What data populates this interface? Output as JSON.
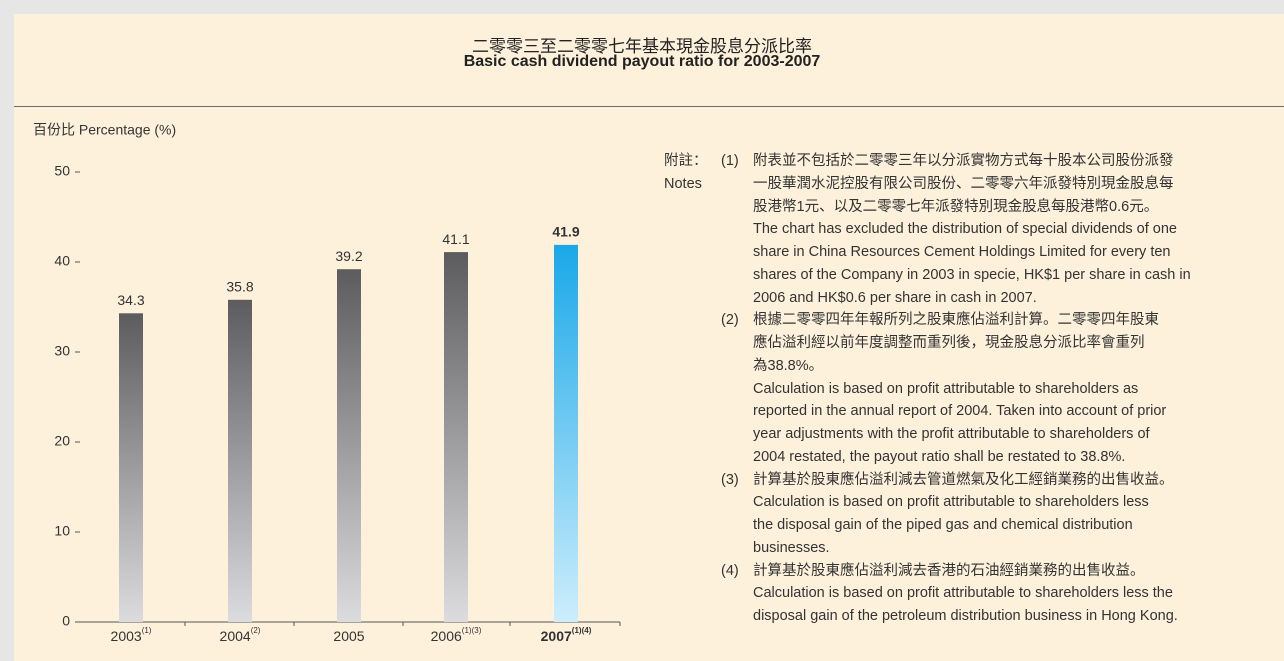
{
  "chart_data": {
    "type": "bar",
    "title": "二零零三至二零零七年基本現金股息分派比率",
    "subtitle": "Basic cash dividend payout ratio for 2003-2007",
    "y_label": "百份比 Percentage (%)",
    "categories": [
      "2003",
      "2004",
      "2005",
      "2006",
      "2007"
    ],
    "category_notes": [
      "(1)",
      "(2)",
      null,
      "(1)(3)",
      "(1)(4)"
    ],
    "values": [
      34.3,
      35.8,
      39.2,
      41.1,
      41.9
    ],
    "color": "#5c5c5e",
    "highlight_color": "#1aa8e8",
    "highlight_index": 4,
    "ylim": [
      0,
      50
    ],
    "yticks": [
      0,
      10,
      20,
      30,
      40,
      50
    ]
  },
  "notes": {
    "label_zh": "附註：",
    "label_en": "Notes",
    "items": [
      {
        "number": "(1)",
        "lines": [
          "附表並不包括於二零零三年以分派實物方式每十股本公司股份派發",
          "一股華潤水泥控股有限公司股份、二零零六年派發特別現金股息每",
          "股港幣1元、以及二零零七年派發特別現金股息每股港幣0.6元。",
          "The chart has excluded the distribution of special dividends of one",
          "share in China Resources Cement Holdings Limited for every ten",
          "shares of the Company in 2003 in specie, HK$1 per share in cash in",
          "2006 and HK$0.6 per share in cash in 2007."
        ]
      },
      {
        "number": "(2)",
        "lines": [
          "根據二零零四年年報所列之股東應佔溢利計算。二零零四年股東",
          "應佔溢利經以前年度調整而重列後，現金股息分派比率會重列",
          "為38.8%。",
          "Calculation is based on profit attributable to shareholders as",
          "reported in the annual report of 2004. Taken into account of prior",
          "year adjustments with the profit attributable to shareholders of",
          "2004 restated, the payout ratio shall be restated to 38.8%."
        ]
      },
      {
        "number": "(3)",
        "lines": [
          "計算基於股東應佔溢利減去管道燃氣及化工經銷業務的出售收益。",
          "Calculation is based on profit attributable to shareholders less",
          "the disposal gain of the piped gas and chemical distribution",
          "businesses."
        ]
      },
      {
        "number": "(4)",
        "lines": [
          "計算基於股東應佔溢利減去香港的石油經銷業務的出售收益。",
          "Calculation is based on profit attributable to shareholders less the",
          "disposal gain of the petroleum distribution business in Hong Kong."
        ]
      }
    ]
  }
}
